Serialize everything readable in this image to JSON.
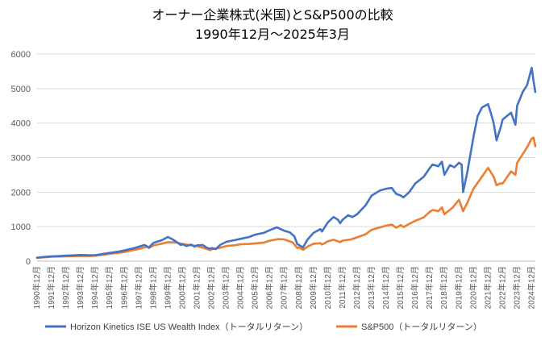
{
  "chart_data": {
    "type": "line",
    "title": "オーナー企業株式(米国)とS&P500の比較",
    "subtitle": "1990年12月～2025年3月",
    "ylim": [
      0,
      6000
    ],
    "yticks": [
      0,
      1000,
      2000,
      3000,
      4000,
      5000,
      6000
    ],
    "ytick_labels": [
      "0",
      "1000",
      "2000",
      "3000",
      "4000",
      "5000",
      "6000"
    ],
    "xlim": [
      1990.917,
      2025.167
    ],
    "xtick_labels": [
      "1990年12月",
      "1991年12月",
      "1992年12月",
      "1993年12月",
      "1994年12月",
      "1995年12月",
      "1996年12月",
      "1997年12月",
      "1998年12月",
      "1999年12月",
      "2000年12月",
      "2001年12月",
      "2002年12月",
      "2003年12月",
      "2004年12月",
      "2005年12月",
      "2006年12月",
      "2007年12月",
      "2008年12月",
      "2009年12月",
      "2010年12月",
      "2011年12月",
      "2012年12月",
      "2013年12月",
      "2014年12月",
      "2015年12月",
      "2016年12月",
      "2017年12月",
      "2018年12月",
      "2019年12月",
      "2020年12月",
      "2021年12月",
      "2022年12月",
      "2023年12月",
      "2024年12月"
    ],
    "xticks": [
      1990.917,
      1991.917,
      1992.917,
      1993.917,
      1994.917,
      1995.917,
      1996.917,
      1997.917,
      1998.917,
      1999.917,
      2000.917,
      2001.917,
      2002.917,
      2003.917,
      2004.917,
      2005.917,
      2006.917,
      2007.917,
      2008.917,
      2009.917,
      2010.917,
      2011.917,
      2012.917,
      2013.917,
      2014.917,
      2015.917,
      2016.917,
      2017.917,
      2018.917,
      2019.917,
      2020.917,
      2021.917,
      2022.917,
      2023.917,
      2024.917
    ],
    "grid": true,
    "legend": "bottom",
    "series": [
      {
        "name": "Horizon Kinetics ISE US Wealth Index（トータルリターン）",
        "color": "#4472C4",
        "points": [
          [
            1990.917,
            100
          ],
          [
            1991.5,
            125
          ],
          [
            1991.917,
            140
          ],
          [
            1992.5,
            150
          ],
          [
            1992.917,
            160
          ],
          [
            1993.5,
            170
          ],
          [
            1993.917,
            180
          ],
          [
            1994.5,
            170
          ],
          [
            1994.917,
            175
          ],
          [
            1995.5,
            215
          ],
          [
            1995.917,
            240
          ],
          [
            1996.5,
            275
          ],
          [
            1996.917,
            310
          ],
          [
            1997.5,
            370
          ],
          [
            1997.917,
            420
          ],
          [
            1998.3,
            470
          ],
          [
            1998.6,
            400
          ],
          [
            1998.917,
            530
          ],
          [
            1999.5,
            610
          ],
          [
            1999.9,
            700
          ],
          [
            2000.2,
            640
          ],
          [
            2000.5,
            560
          ],
          [
            2000.8,
            470
          ],
          [
            2000.917,
            490
          ],
          [
            2001.2,
            440
          ],
          [
            2001.5,
            480
          ],
          [
            2001.75,
            420
          ],
          [
            2001.917,
            460
          ],
          [
            2002.3,
            470
          ],
          [
            2002.6,
            390
          ],
          [
            2002.8,
            360
          ],
          [
            2002.917,
            380
          ],
          [
            2003.2,
            350
          ],
          [
            2003.5,
            470
          ],
          [
            2003.917,
            560
          ],
          [
            2004.5,
            610
          ],
          [
            2004.917,
            650
          ],
          [
            2005.5,
            700
          ],
          [
            2005.917,
            770
          ],
          [
            2006.5,
            820
          ],
          [
            2006.917,
            900
          ],
          [
            2007.4,
            980
          ],
          [
            2007.7,
            920
          ],
          [
            2007.917,
            880
          ],
          [
            2008.3,
            830
          ],
          [
            2008.6,
            720
          ],
          [
            2008.8,
            500
          ],
          [
            2008.917,
            470
          ],
          [
            2009.2,
            400
          ],
          [
            2009.5,
            620
          ],
          [
            2009.917,
            820
          ],
          [
            2010.4,
            930
          ],
          [
            2010.5,
            860
          ],
          [
            2010.917,
            1130
          ],
          [
            2011.3,
            1280
          ],
          [
            2011.6,
            1200
          ],
          [
            2011.75,
            1100
          ],
          [
            2011.917,
            1200
          ],
          [
            2012.3,
            1330
          ],
          [
            2012.6,
            1280
          ],
          [
            2012.917,
            1360
          ],
          [
            2013.5,
            1620
          ],
          [
            2013.917,
            1900
          ],
          [
            2014.5,
            2050
          ],
          [
            2014.917,
            2100
          ],
          [
            2015.3,
            2120
          ],
          [
            2015.6,
            1950
          ],
          [
            2015.917,
            1900
          ],
          [
            2016.1,
            1850
          ],
          [
            2016.5,
            2000
          ],
          [
            2016.917,
            2250
          ],
          [
            2017.5,
            2450
          ],
          [
            2017.917,
            2700
          ],
          [
            2018.1,
            2800
          ],
          [
            2018.5,
            2750
          ],
          [
            2018.75,
            2880
          ],
          [
            2018.917,
            2500
          ],
          [
            2019.3,
            2780
          ],
          [
            2019.6,
            2720
          ],
          [
            2019.917,
            2850
          ],
          [
            2020.1,
            2800
          ],
          [
            2020.2,
            2000
          ],
          [
            2020.5,
            2600
          ],
          [
            2020.917,
            3600
          ],
          [
            2021.2,
            4200
          ],
          [
            2021.5,
            4450
          ],
          [
            2021.917,
            4550
          ],
          [
            2022.1,
            4300
          ],
          [
            2022.3,
            4000
          ],
          [
            2022.5,
            3500
          ],
          [
            2022.8,
            3900
          ],
          [
            2022.917,
            4100
          ],
          [
            2023.2,
            4200
          ],
          [
            2023.5,
            4300
          ],
          [
            2023.8,
            3950
          ],
          [
            2023.917,
            4500
          ],
          [
            2024.3,
            4900
          ],
          [
            2024.6,
            5100
          ],
          [
            2024.917,
            5600
          ],
          [
            2025.05,
            5200
          ],
          [
            2025.167,
            4900
          ]
        ]
      },
      {
        "name": "S&P500（トータルリターン）",
        "color": "#ED7D31",
        "points": [
          [
            1990.917,
            100
          ],
          [
            1991.5,
            115
          ],
          [
            1991.917,
            130
          ],
          [
            1992.5,
            135
          ],
          [
            1992.917,
            140
          ],
          [
            1993.5,
            148
          ],
          [
            1993.917,
            155
          ],
          [
            1994.5,
            150
          ],
          [
            1994.917,
            157
          ],
          [
            1995.5,
            190
          ],
          [
            1995.917,
            215
          ],
          [
            1996.5,
            240
          ],
          [
            1996.917,
            265
          ],
          [
            1997.5,
            320
          ],
          [
            1997.917,
            355
          ],
          [
            1998.5,
            420
          ],
          [
            1998.6,
            380
          ],
          [
            1998.917,
            455
          ],
          [
            1999.5,
            510
          ],
          [
            1999.917,
            550
          ],
          [
            2000.5,
            540
          ],
          [
            2000.917,
            500
          ],
          [
            2001.5,
            460
          ],
          [
            2001.917,
            440
          ],
          [
            2002.5,
            370
          ],
          [
            2002.8,
            320
          ],
          [
            2002.917,
            345
          ],
          [
            2003.5,
            390
          ],
          [
            2003.917,
            440
          ],
          [
            2004.5,
            460
          ],
          [
            2004.917,
            490
          ],
          [
            2005.5,
            500
          ],
          [
            2005.917,
            515
          ],
          [
            2006.5,
            540
          ],
          [
            2006.917,
            595
          ],
          [
            2007.5,
            640
          ],
          [
            2007.917,
            630
          ],
          [
            2008.5,
            540
          ],
          [
            2008.8,
            380
          ],
          [
            2008.917,
            400
          ],
          [
            2009.2,
            330
          ],
          [
            2009.5,
            420
          ],
          [
            2009.917,
            505
          ],
          [
            2010.4,
            520
          ],
          [
            2010.5,
            480
          ],
          [
            2010.917,
            580
          ],
          [
            2011.3,
            620
          ],
          [
            2011.75,
            550
          ],
          [
            2011.917,
            595
          ],
          [
            2012.5,
            630
          ],
          [
            2012.917,
            690
          ],
          [
            2013.5,
            780
          ],
          [
            2013.917,
            910
          ],
          [
            2014.5,
            980
          ],
          [
            2014.917,
            1030
          ],
          [
            2015.3,
            1060
          ],
          [
            2015.6,
            970
          ],
          [
            2015.917,
            1045
          ],
          [
            2016.1,
            990
          ],
          [
            2016.5,
            1080
          ],
          [
            2016.917,
            1170
          ],
          [
            2017.5,
            1270
          ],
          [
            2017.917,
            1430
          ],
          [
            2018.1,
            1480
          ],
          [
            2018.5,
            1450
          ],
          [
            2018.75,
            1560
          ],
          [
            2018.917,
            1360
          ],
          [
            2019.5,
            1560
          ],
          [
            2019.917,
            1780
          ],
          [
            2020.2,
            1450
          ],
          [
            2020.5,
            1700
          ],
          [
            2020.917,
            2100
          ],
          [
            2021.5,
            2450
          ],
          [
            2021.917,
            2700
          ],
          [
            2022.3,
            2450
          ],
          [
            2022.5,
            2200
          ],
          [
            2022.75,
            2250
          ],
          [
            2022.917,
            2250
          ],
          [
            2023.5,
            2600
          ],
          [
            2023.8,
            2500
          ],
          [
            2023.917,
            2850
          ],
          [
            2024.3,
            3100
          ],
          [
            2024.6,
            3300
          ],
          [
            2024.917,
            3550
          ],
          [
            2025.05,
            3580
          ],
          [
            2025.167,
            3330
          ]
        ]
      }
    ]
  }
}
